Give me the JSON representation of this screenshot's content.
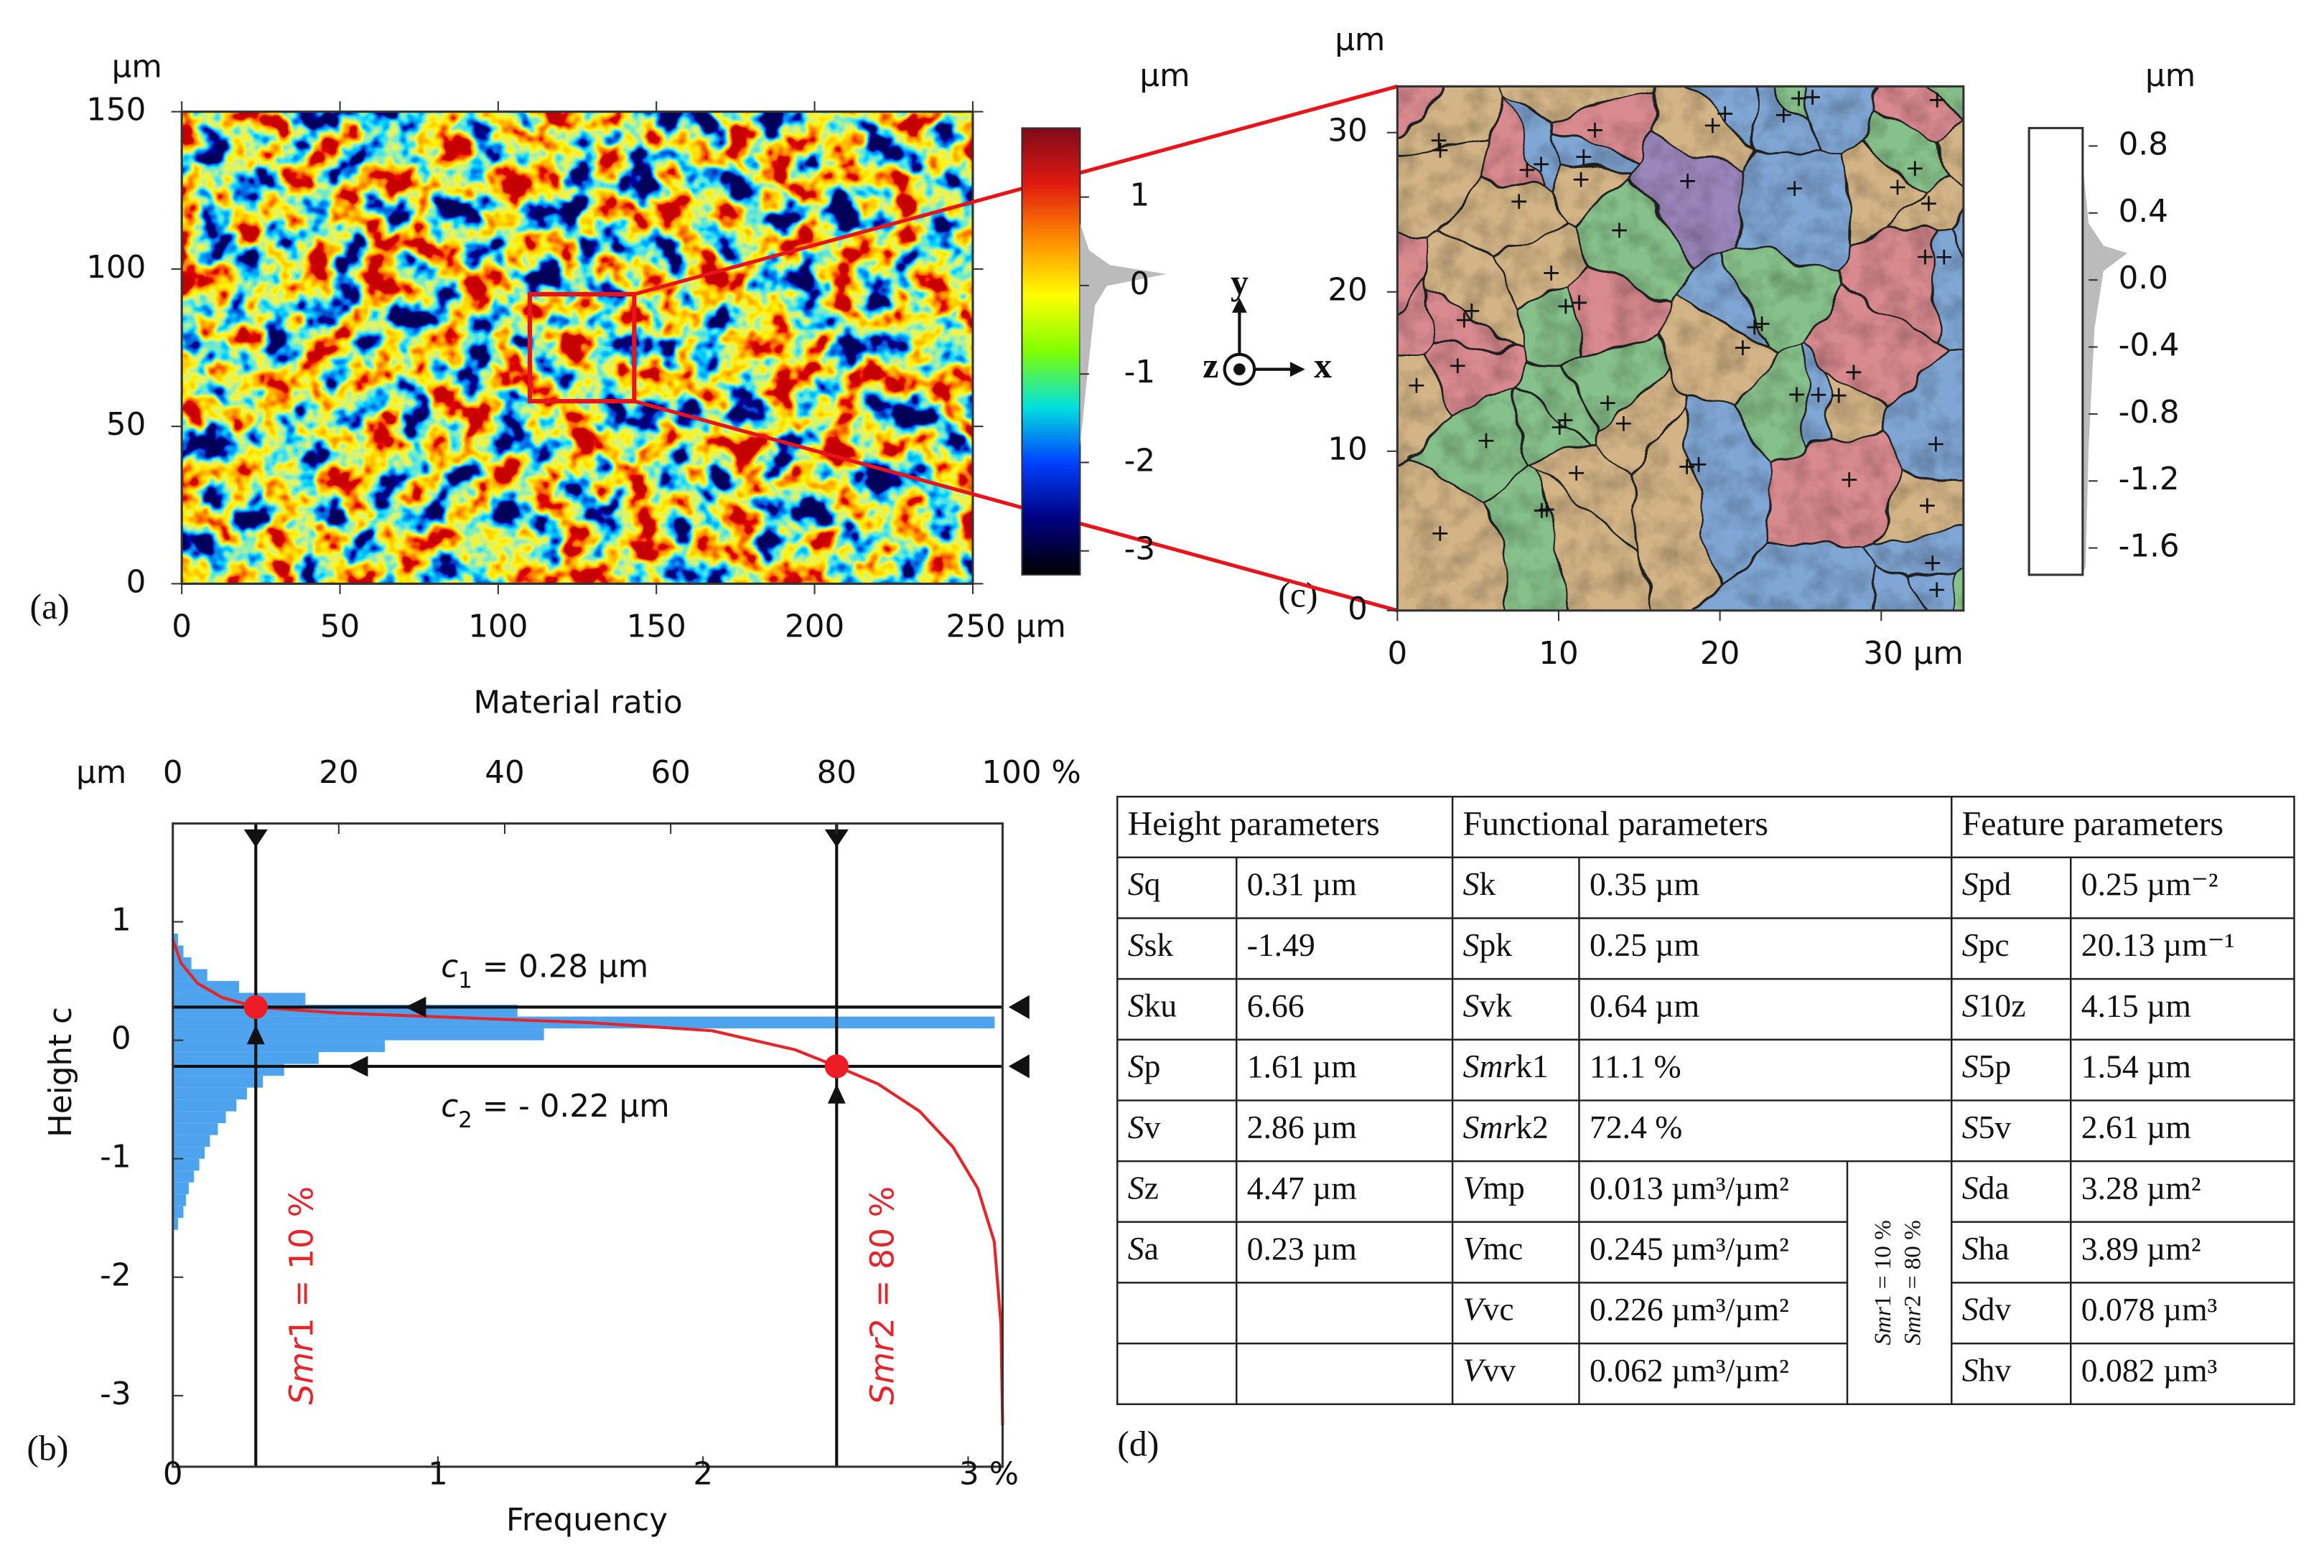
{
  "panel_a": {
    "type": "heatmap",
    "label": "(a)",
    "y_unit": "µm",
    "xlim": [
      0,
      250
    ],
    "ylim": [
      0,
      150
    ],
    "xticks": [
      0,
      50,
      100,
      150,
      200,
      {
        "value": 250,
        "label": "250 µm"
      }
    ],
    "yticks": [
      0,
      50,
      100,
      150
    ],
    "colorbar": {
      "unit": "µm",
      "clim": [
        -3.27,
        1.78
      ],
      "ticks": [
        1,
        0,
        -1,
        -2,
        -3
      ],
      "colormap": [
        "#7f0a1a",
        "#e01a10",
        "#ff8c00",
        "#ffff00",
        "#7fff00",
        "#00e0e0",
        "#0040ff",
        "#000080",
        "#000000"
      ]
    },
    "zoom_box": {
      "x": [
        110,
        143
      ],
      "y": [
        58,
        92
      ],
      "color": "#e8141b"
    }
  },
  "panel_b": {
    "type": "material_ratio",
    "label": "(b)",
    "title": "Material ratio",
    "y_unit": "µm",
    "ylabel": "Height c",
    "xlabel": "Frequency",
    "xlim": [
      0,
      3.13
    ],
    "xticks": [
      0,
      1,
      2,
      {
        "value": 3,
        "label": "3 %"
      }
    ],
    "x2lim": [
      0,
      100
    ],
    "x2ticks": [
      0,
      20,
      40,
      60,
      80,
      {
        "value": 100,
        "label": "100 %"
      }
    ],
    "ylim": [
      -3.6,
      1.83
    ],
    "yticks": [
      -3,
      -2,
      -1,
      0,
      1
    ],
    "histogram": {
      "color": "#4ea3ee",
      "bins": [
        -1.6,
        -1.5,
        -1.4,
        -1.3,
        -1.2,
        -1.1,
        -1.0,
        -0.9,
        -0.8,
        -0.7,
        -0.6,
        -0.5,
        -0.4,
        -0.3,
        -0.2,
        -0.1,
        0,
        0.1,
        0.2,
        0.3,
        0.4,
        0.5,
        0.6,
        0.7,
        0.8,
        0.9
      ],
      "counts": [
        0.02,
        0.04,
        0.05,
        0.06,
        0.08,
        0.1,
        0.12,
        0.14,
        0.17,
        0.2,
        0.24,
        0.28,
        0.34,
        0.42,
        0.55,
        0.8,
        1.4,
        3.1,
        1.3,
        0.5,
        0.25,
        0.13,
        0.07,
        0.04,
        0.02
      ]
    },
    "bearing_curve": {
      "color": "#e3262b",
      "x": [
        0,
        1,
        3,
        6,
        10,
        20,
        35,
        50,
        65,
        75,
        80,
        85,
        90,
        94,
        97,
        99,
        99.8,
        100
      ],
      "y": [
        0.85,
        0.65,
        0.48,
        0.36,
        0.28,
        0.23,
        0.19,
        0.15,
        0.08,
        -0.08,
        -0.22,
        -0.37,
        -0.6,
        -0.9,
        -1.25,
        -1.7,
        -2.4,
        -3.25
      ]
    },
    "c1": {
      "value": 0.28,
      "symbol": "c",
      "subscript": "1",
      "text": " = 0.28 µm"
    },
    "c2": {
      "value": -0.22,
      "symbol": "c",
      "subscript": "2",
      "text": " = - 0.22 µm"
    },
    "smr1": {
      "value": 10,
      "italic": "Smr",
      "text": "1 = 10 %"
    },
    "smr2": {
      "value": 80,
      "italic": "Smr",
      "text": "2 = 80 %"
    }
  },
  "panel_c": {
    "type": "segmentation",
    "label": "(c)",
    "y_unit": "µm",
    "xlim": [
      0,
      35.1
    ],
    "ylim": [
      0,
      32.9
    ],
    "xticks": [
      0,
      10,
      20,
      {
        "value": 30,
        "label": "30 µm"
      }
    ],
    "yticks": [
      0,
      10,
      20,
      30
    ],
    "segment_colors": [
      "#d98a8f",
      "#86c08a",
      "#7fa6d4",
      "#d3b486",
      "#9b86bb"
    ],
    "axes_gizmo": {
      "x": "x",
      "y": "y",
      "z": "z"
    },
    "colorbar": {
      "unit": "µm",
      "clim": [
        -1.76,
        0.907
      ],
      "ticks": [
        0.8,
        0.4,
        {
          "value": 0,
          "label": "0.0"
        },
        -0.4,
        -0.8,
        -1.2,
        -1.6
      ]
    }
  },
  "table": {
    "label": "(d)",
    "headers": [
      "Height parameters",
      "Functional parameters",
      "Feature parameters"
    ],
    "height": [
      {
        "name": [
          "S",
          "q"
        ],
        "value": "0.31 µm"
      },
      {
        "name": [
          "S",
          "sk"
        ],
        "value": "-1.49"
      },
      {
        "name": [
          "S",
          "ku"
        ],
        "value": "6.66"
      },
      {
        "name": [
          "S",
          "p"
        ],
        "value": "1.61 µm"
      },
      {
        "name": [
          "S",
          "v"
        ],
        "value": "2.86 µm"
      },
      {
        "name": [
          "S",
          "z"
        ],
        "value": "4.47 µm"
      },
      {
        "name": [
          "S",
          "a"
        ],
        "value": "0.23 µm"
      }
    ],
    "functional": [
      {
        "name": [
          "S",
          "k"
        ],
        "value": "0.35 µm"
      },
      {
        "name": [
          "S",
          "pk"
        ],
        "value": "0.25 µm"
      },
      {
        "name": [
          "S",
          "vk"
        ],
        "value": "0.64 µm"
      },
      {
        "name": [
          "Smr",
          "k1"
        ],
        "value": "11.1 %"
      },
      {
        "name": [
          "Smr",
          "k2"
        ],
        "value": "72.4 %"
      },
      {
        "name": [
          "V",
          "mp"
        ],
        "value": "0.013 µm³/µm²"
      },
      {
        "name": [
          "V",
          "mc"
        ],
        "value": "0.245 µm³/µm²"
      },
      {
        "name": [
          "V",
          "vc"
        ],
        "value": "0.226 µm³/µm²"
      },
      {
        "name": [
          "V",
          "vv"
        ],
        "value": "0.062 µm³/µm²"
      }
    ],
    "volume_note": [
      {
        "italic": "Smr",
        "text": "1 = 10 %"
      },
      {
        "italic": "Smr",
        "text": "2 = 80 %"
      }
    ],
    "feature": [
      {
        "name": [
          "S",
          "pd"
        ],
        "value": "0.25 µm⁻²"
      },
      {
        "name": [
          "S",
          "pc"
        ],
        "value": "20.13 µm⁻¹"
      },
      {
        "name": [
          "S",
          "10z"
        ],
        "value": "4.15 µm"
      },
      {
        "name": [
          "S",
          "5p"
        ],
        "value": "1.54 µm"
      },
      {
        "name": [
          "S",
          "5v"
        ],
        "value": "2.61 µm"
      },
      {
        "name": [
          "S",
          "da"
        ],
        "value": "3.28 µm²"
      },
      {
        "name": [
          "S",
          "ha"
        ],
        "value": "3.89 µm²"
      },
      {
        "name": [
          "S",
          "dv"
        ],
        "value": "0.078 µm³"
      },
      {
        "name": [
          "S",
          "hv"
        ],
        "value": "0.082 µm³"
      }
    ]
  }
}
